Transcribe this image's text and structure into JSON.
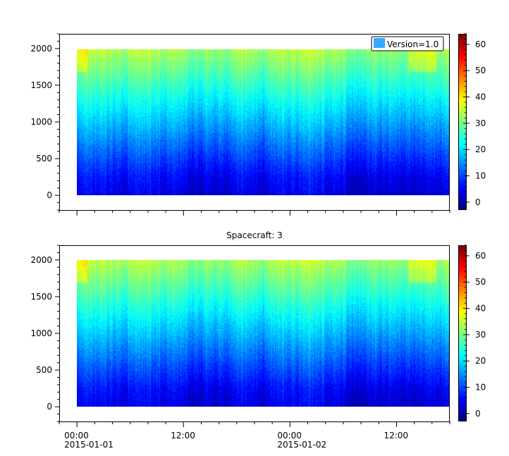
{
  "chart_data": [
    {
      "type": "heatmap",
      "title": "",
      "legend": {
        "label": "Version=1.0",
        "placement": "top-right"
      },
      "x_ticks": [
        {
          "major": "00:00",
          "minor": "2015-01-01"
        },
        {
          "major": "12:00",
          "minor": ""
        },
        {
          "major": "00:00",
          "minor": "2015-01-02"
        },
        {
          "major": "12:00",
          "minor": ""
        }
      ],
      "x_data_range_hours": [
        0,
        42
      ],
      "xlim_hours": [
        -2,
        42
      ],
      "y_ticks": [
        "0",
        "500",
        "1000",
        "1500",
        "2000"
      ],
      "ylim": [
        -200,
        2200
      ],
      "y_data_range": [
        0,
        2000
      ],
      "mean_profile": {
        "y": [
          0,
          250,
          500,
          750,
          1000,
          1250,
          1500,
          1750,
          2000
        ],
        "z": [
          3,
          5,
          9,
          13,
          17,
          21,
          25,
          29,
          33
        ]
      },
      "colorbar": {
        "ticks": [
          "0",
          "10",
          "20",
          "30",
          "40",
          "50",
          "60"
        ],
        "range": [
          -3,
          64
        ],
        "colormap": "jet"
      }
    },
    {
      "type": "heatmap",
      "title": "Spacecraft: 3",
      "x_ticks": [
        {
          "major": "00:00",
          "minor": "2015-01-01"
        },
        {
          "major": "12:00",
          "minor": ""
        },
        {
          "major": "00:00",
          "minor": "2015-01-02"
        },
        {
          "major": "12:00",
          "minor": ""
        }
      ],
      "x_data_range_hours": [
        0,
        42
      ],
      "xlim_hours": [
        -2,
        42
      ],
      "y_ticks": [
        "0",
        "500",
        "1000",
        "1500",
        "2000"
      ],
      "ylim": [
        -200,
        2200
      ],
      "y_data_range": [
        0,
        2000
      ],
      "mean_profile": {
        "y": [
          0,
          250,
          500,
          750,
          1000,
          1250,
          1500,
          1750,
          2000
        ],
        "z": [
          3,
          5,
          9,
          13,
          17,
          21,
          25,
          29,
          33
        ]
      },
      "colorbar": {
        "ticks": [
          "0",
          "10",
          "20",
          "30",
          "40",
          "50",
          "60"
        ],
        "range": [
          -3,
          64
        ],
        "colormap": "jet"
      }
    }
  ]
}
